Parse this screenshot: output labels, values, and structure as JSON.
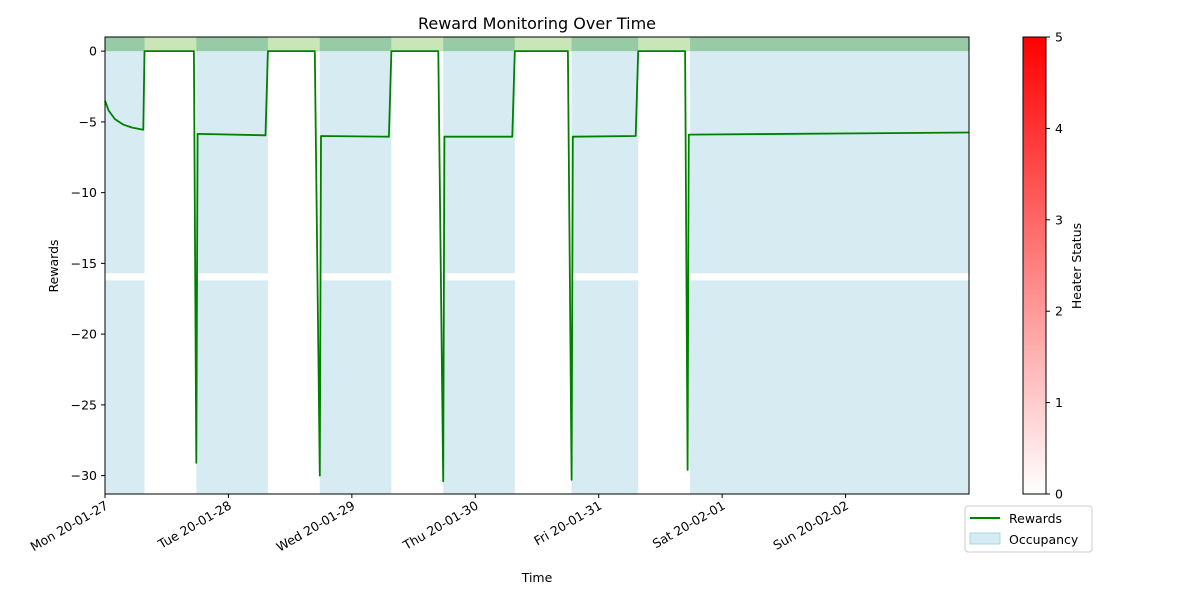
{
  "chart_data": {
    "type": "line",
    "title": "Reward Monitoring Over Time",
    "xlabel": "Time",
    "ylabel": "Rewards",
    "x_unit": "day",
    "xlim": [
      0,
      7.0
    ],
    "ylim": [
      -31.3,
      1.0
    ],
    "x_ticks": [
      {
        "value": 0,
        "label": "Mon 20-01-27"
      },
      {
        "value": 1,
        "label": "Tue 20-01-28"
      },
      {
        "value": 2,
        "label": "Wed 20-01-29"
      },
      {
        "value": 3,
        "label": "Thu 20-01-30"
      },
      {
        "value": 4,
        "label": "Fri 20-01-31"
      },
      {
        "value": 5,
        "label": "Sat 20-02-01"
      },
      {
        "value": 6,
        "label": "Sun 20-02-02"
      }
    ],
    "y_ticks": [
      0,
      -5,
      -10,
      -15,
      -20,
      -25,
      -30
    ],
    "series": [
      {
        "name": "Rewards",
        "color": "#008000",
        "x": [
          0,
          0.03,
          0.08,
          0.15,
          0.22,
          0.31,
          0.32,
          0.72,
          0.74,
          0.75,
          1.3,
          1.32,
          1.7,
          1.74,
          1.75,
          2.3,
          2.32,
          2.7,
          2.74,
          2.75,
          3.3,
          3.32,
          3.75,
          3.78,
          3.79,
          4.3,
          4.32,
          4.7,
          4.72,
          4.73,
          7.0
        ],
        "y": [
          -3.5,
          -4.2,
          -4.8,
          -5.2,
          -5.4,
          -5.55,
          0,
          0,
          -29.1,
          -5.85,
          -5.95,
          0,
          0,
          -30.0,
          -6.0,
          -6.05,
          0,
          0,
          -30.4,
          -6.05,
          -6.05,
          0,
          0,
          -30.3,
          -6.05,
          -6.0,
          0,
          0,
          -29.6,
          -5.9,
          -5.75
        ]
      }
    ],
    "occupancy": {
      "name": "Occupancy",
      "color": "#add8e6",
      "intervals": [
        [
          0,
          0.32
        ],
        [
          0.74,
          1.32
        ],
        [
          1.74,
          2.32
        ],
        [
          2.74,
          3.32
        ],
        [
          3.78,
          4.32
        ],
        [
          4.74,
          7.0
        ]
      ],
      "band_y": [
        -15.7,
        -16.2
      ]
    },
    "top_band": {
      "y_range": [
        0,
        1.0
      ],
      "color_occupied": "#97cba6",
      "color_unoccupied": "#c9e6b8"
    },
    "colorbar": {
      "label": "Heater Status",
      "range": [
        0,
        5
      ],
      "ticks": [
        0,
        1,
        2,
        3,
        4,
        5
      ],
      "color_min": "#ffffff",
      "color_max": "#ff0000"
    },
    "legend": {
      "placement": "bottom-right",
      "entries": [
        "Rewards",
        "Occupancy"
      ]
    }
  }
}
